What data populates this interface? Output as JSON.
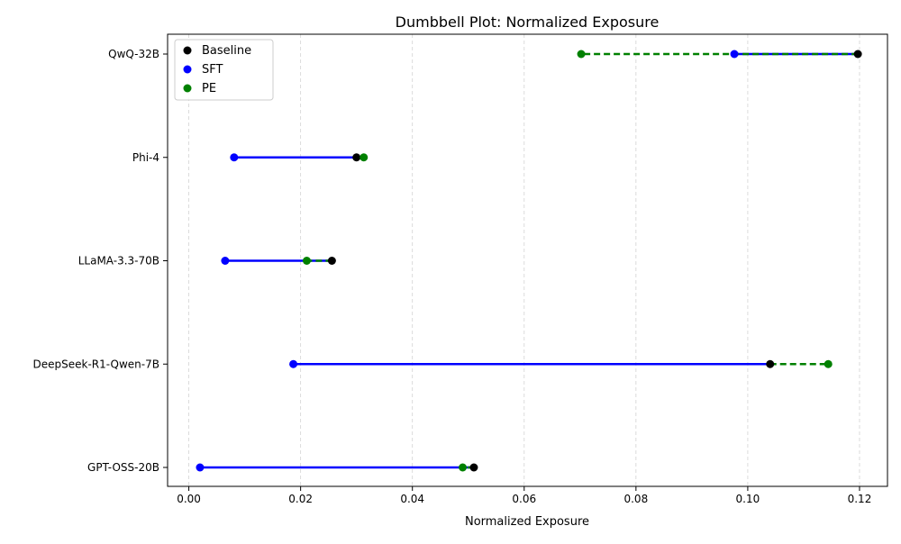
{
  "chart_data": {
    "type": "dumbbell",
    "title": "Dumbbell Plot: Normalized Exposure",
    "xlabel": "Normalized Exposure",
    "ylabel": "",
    "xlim": [
      -0.0038,
      0.125
    ],
    "xticks": [
      0.0,
      0.02,
      0.04,
      0.06,
      0.08,
      0.1,
      0.12
    ],
    "xtick_labels": [
      "0.00",
      "0.02",
      "0.04",
      "0.06",
      "0.08",
      "0.10",
      "0.12"
    ],
    "grid": "x-dashed",
    "legend_position": "top-left",
    "categories": [
      "QwQ-32B",
      "Phi-4",
      "LLaMA-3.3-70B",
      "DeepSeek-R1-Qwen-7B",
      "GPT-OSS-20B"
    ],
    "series": [
      {
        "name": "Baseline",
        "color": "#000000",
        "values": [
          0.1197,
          0.03,
          0.0256,
          0.104,
          0.051
        ]
      },
      {
        "name": "SFT",
        "color": "#0000ff",
        "values": [
          0.0976,
          0.0081,
          0.0065,
          0.0187,
          0.002
        ]
      },
      {
        "name": "PE",
        "color": "#008000",
        "values": [
          0.0702,
          0.0313,
          0.0211,
          0.1144,
          0.049
        ]
      }
    ],
    "connectors": [
      {
        "from": "Baseline",
        "to": "SFT",
        "color": "#0000ff",
        "style": "solid"
      },
      {
        "from": "Baseline",
        "to": "PE",
        "color": "#008000",
        "style": "dashed"
      }
    ]
  }
}
